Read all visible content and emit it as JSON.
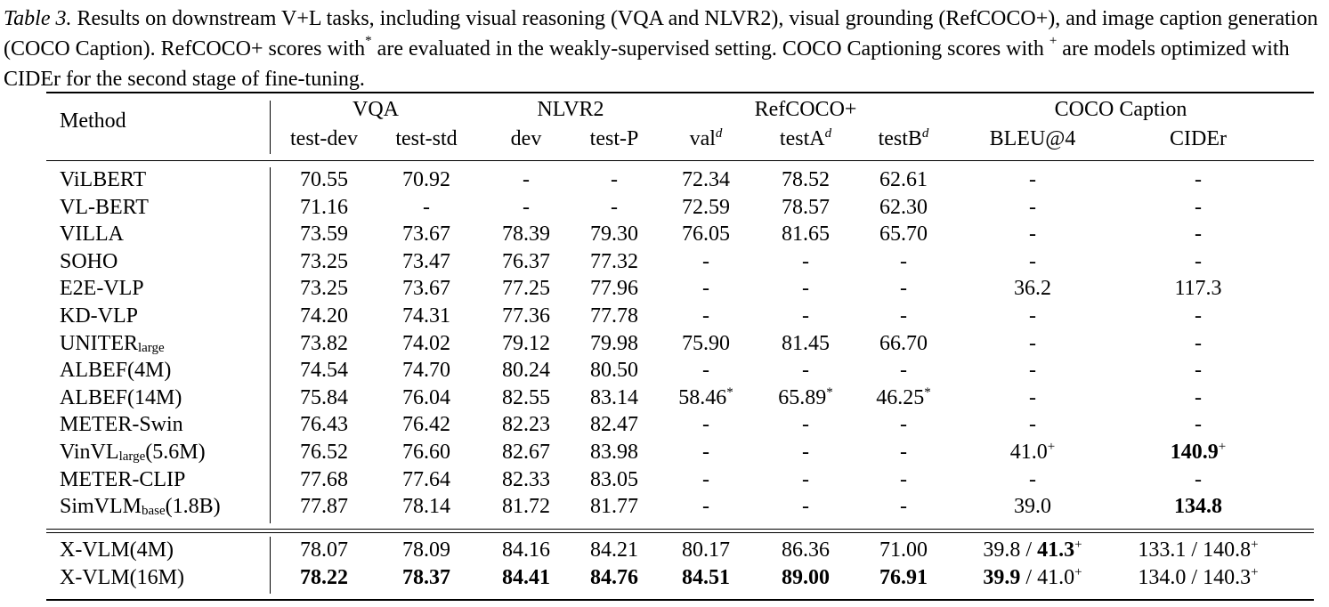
{
  "caption": {
    "label": "Table 3.",
    "text_part1": "Results on downstream V+L tasks, including visual reasoning (VQA and NLVR2), visual grounding (RefCOCO+), and image caption generation (COCO Caption). RefCOCO+ scores with",
    "star": "*",
    "text_part2": "are evaluated in the weakly-supervised setting. COCO Captioning scores with",
    "plus": "+",
    "text_part3": "are models optimized with CIDEr for the second stage of fine-tuning."
  },
  "header": {
    "method": "Method",
    "groups": [
      "VQA",
      "NLVR2",
      "RefCOCO+",
      "COCO Caption"
    ],
    "subcols": [
      "test-dev",
      "test-std",
      "dev",
      "test-P",
      "val",
      "testA",
      "testB",
      "BLEU@4",
      "CIDEr"
    ],
    "sup_d": "d"
  },
  "rows": [
    {
      "method": "ViLBERT",
      "vals": [
        "70.55",
        "70.92",
        "-",
        "-",
        "72.34",
        "78.52",
        "62.61",
        "-",
        "-"
      ]
    },
    {
      "method": "VL-BERT",
      "vals": [
        "71.16",
        "-",
        "-",
        "-",
        "72.59",
        "78.57",
        "62.30",
        "-",
        "-"
      ]
    },
    {
      "method": "VILLA",
      "vals": [
        "73.59",
        "73.67",
        "78.39",
        "79.30",
        "76.05",
        "81.65",
        "65.70",
        "-",
        "-"
      ]
    },
    {
      "method": "SOHO",
      "vals": [
        "73.25",
        "73.47",
        "76.37",
        "77.32",
        "-",
        "-",
        "-",
        "-",
        "-"
      ]
    },
    {
      "method": "E2E-VLP",
      "vals": [
        "73.25",
        "73.67",
        "77.25",
        "77.96",
        "-",
        "-",
        "-",
        "36.2",
        "117.3"
      ]
    },
    {
      "method": "KD-VLP",
      "vals": [
        "74.20",
        "74.31",
        "77.36",
        "77.78",
        "-",
        "-",
        "-",
        "-",
        "-"
      ]
    },
    {
      "method": "UNITER",
      "method_sub": "large",
      "vals": [
        "73.82",
        "74.02",
        "79.12",
        "79.98",
        "75.90",
        "81.45",
        "66.70",
        "-",
        "-"
      ]
    },
    {
      "method": "ALBEF(4M)",
      "vals": [
        "74.54",
        "74.70",
        "80.24",
        "80.50",
        "-",
        "-",
        "-",
        "-",
        "-"
      ]
    },
    {
      "method": "ALBEF(14M)",
      "vals": [
        "75.84",
        "76.04",
        "82.55",
        "83.14",
        "58.46*",
        "65.89*",
        "46.25*",
        "-",
        "-"
      ]
    },
    {
      "method": "METER-Swin",
      "vals": [
        "76.43",
        "76.42",
        "82.23",
        "82.47",
        "-",
        "-",
        "-",
        "-",
        "-"
      ]
    },
    {
      "method": "VinVL",
      "method_sub": "large",
      "method_tail": "(5.6M)",
      "vals": [
        "76.52",
        "76.60",
        "82.67",
        "83.98",
        "-",
        "-",
        "-",
        "41.0+",
        "140.9+"
      ]
    },
    {
      "method": "METER-CLIP",
      "vals": [
        "77.68",
        "77.64",
        "82.33",
        "83.05",
        "-",
        "-",
        "-",
        "-",
        "-"
      ]
    },
    {
      "method": "SimVLM",
      "method_sub": "base",
      "method_tail": "(1.8B)",
      "vals": [
        "77.87",
        "78.14",
        "81.72",
        "81.77",
        "-",
        "-",
        "-",
        "39.0",
        "134.8"
      ]
    }
  ],
  "ours": [
    {
      "method": "X-VLM(4M)",
      "vals": [
        "78.07",
        "78.09",
        "84.16",
        "84.21",
        "80.17",
        "86.36",
        "71.00",
        "39.8 / 41.3+",
        "133.1 / 140.8+"
      ]
    },
    {
      "method": "X-VLM(16M)",
      "vals": [
        "78.22",
        "78.37",
        "84.41",
        "84.76",
        "84.51",
        "89.00",
        "76.91",
        "39.9 / 41.0+",
        "134.0 / 140.3+"
      ]
    }
  ]
}
